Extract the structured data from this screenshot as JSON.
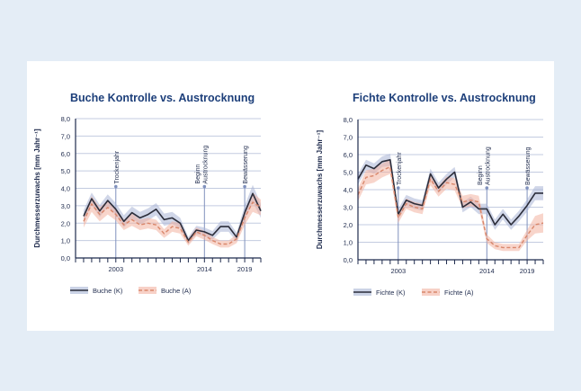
{
  "chart_data": [
    {
      "type": "line",
      "title": "Buche Kontrolle vs. Austrocknung",
      "ylabel": "Durchmesserzuwachs [mm Jahr⁻¹]",
      "xlabel": "",
      "ylim": [
        0,
        8
      ],
      "yticks": [
        "0,0",
        "1,0",
        "2,0",
        "3,0",
        "4,0",
        "5,0",
        "6,0",
        "7,0",
        "8,0"
      ],
      "xlim": [
        1998,
        2021
      ],
      "xtick_years": [
        1998,
        1999,
        2000,
        2001,
        2002,
        2003,
        2004,
        2005,
        2006,
        2007,
        2008,
        2009,
        2010,
        2011,
        2012,
        2013,
        2014,
        2015,
        2016,
        2017,
        2018,
        2019,
        2020,
        2021
      ],
      "xtick_labels": [
        {
          "x": 2003,
          "label": "2003"
        },
        {
          "x": 2014,
          "label": "2014"
        },
        {
          "x": 2019,
          "label": "2019"
        }
      ],
      "grid": "horizontal",
      "legend_placement": "bottom-left",
      "x": [
        1999,
        2000,
        2001,
        2002,
        2003,
        2004,
        2005,
        2006,
        2007,
        2008,
        2009,
        2010,
        2011,
        2012,
        2013,
        2014,
        2015,
        2016,
        2017,
        2018,
        2019,
        2020,
        2021
      ],
      "series": [
        {
          "name": "Buche (K)",
          "color": "#2b2d3a",
          "band_color": "#a9b5d6",
          "dash": "solid",
          "values": [
            2.4,
            3.4,
            2.7,
            3.3,
            2.8,
            2.1,
            2.6,
            2.3,
            2.5,
            2.8,
            2.2,
            2.3,
            2.0,
            1.0,
            1.6,
            1.5,
            1.3,
            1.8,
            1.8,
            1.2,
            2.6,
            3.7,
            2.7
          ],
          "band": [
            0.35,
            0.35,
            0.35,
            0.35,
            0.35,
            0.35,
            0.35,
            0.35,
            0.35,
            0.35,
            0.35,
            0.35,
            0.3,
            0.2,
            0.25,
            0.25,
            0.25,
            0.3,
            0.3,
            0.25,
            0.4,
            0.5,
            0.4
          ]
        },
        {
          "name": "Buche (A)",
          "color": "#d9876b",
          "band_color": "#f2b3a1",
          "dash": "dashed",
          "values": [
            2.1,
            3.1,
            2.5,
            2.9,
            2.5,
            1.9,
            2.2,
            1.9,
            2.0,
            1.9,
            1.4,
            1.8,
            1.7,
            0.9,
            1.5,
            1.3,
            1.0,
            0.8,
            0.8,
            1.1,
            2.3,
            3.2,
            2.9
          ],
          "band": [
            0.35,
            0.45,
            0.4,
            0.4,
            0.35,
            0.3,
            0.35,
            0.3,
            0.3,
            0.3,
            0.25,
            0.3,
            0.3,
            0.2,
            0.25,
            0.25,
            0.2,
            0.2,
            0.2,
            0.25,
            0.4,
            0.55,
            0.45
          ]
        }
      ],
      "annotations": [
        {
          "x": 2003,
          "y": 4.1,
          "label_lines": [
            "Trockenjahr"
          ]
        },
        {
          "x": 2014,
          "y": 4.1,
          "label_lines": [
            "Beginn",
            "Austrocknung"
          ]
        },
        {
          "x": 2019,
          "y": 4.1,
          "label_lines": [
            "Bewässerung"
          ]
        }
      ]
    },
    {
      "type": "line",
      "title": "Fichte Kontrolle vs. Austrocknung",
      "ylabel": "Durchmesserzuwachs [mm Jahr⁻¹]",
      "xlabel": "",
      "ylim": [
        0,
        8
      ],
      "yticks": [
        "0,0",
        "1,0",
        "2,0",
        "3,0",
        "4,0",
        "5,0",
        "6,0",
        "7,0",
        "8,0"
      ],
      "xlim": [
        1998,
        2021
      ],
      "xtick_years": [
        1998,
        1999,
        2000,
        2001,
        2002,
        2003,
        2004,
        2005,
        2006,
        2007,
        2008,
        2009,
        2010,
        2011,
        2012,
        2013,
        2014,
        2015,
        2016,
        2017,
        2018,
        2019,
        2020,
        2021
      ],
      "xtick_labels": [
        {
          "x": 2003,
          "label": "2003"
        },
        {
          "x": 2014,
          "label": "2014"
        },
        {
          "x": 2019,
          "label": "2019"
        }
      ],
      "grid": "horizontal",
      "legend_placement": "bottom-left",
      "x": [
        1998,
        1999,
        2000,
        2001,
        2002,
        2003,
        2004,
        2005,
        2006,
        2007,
        2008,
        2009,
        2010,
        2011,
        2012,
        2013,
        2014,
        2015,
        2016,
        2017,
        2018,
        2019,
        2020,
        2021
      ],
      "series": [
        {
          "name": "Fichte (K)",
          "color": "#2b2d3a",
          "band_color": "#a9b5d6",
          "dash": "solid",
          "values": [
            4.6,
            5.4,
            5.2,
            5.6,
            5.7,
            2.6,
            3.4,
            3.2,
            3.1,
            4.9,
            4.1,
            4.6,
            5.0,
            3.0,
            3.3,
            2.9,
            2.9,
            2.0,
            2.6,
            2.0,
            2.5,
            3.1,
            3.8,
            3.8
          ],
          "band": [
            0.3,
            0.3,
            0.3,
            0.3,
            0.35,
            0.3,
            0.3,
            0.3,
            0.3,
            0.3,
            0.3,
            0.3,
            0.3,
            0.3,
            0.3,
            0.3,
            0.3,
            0.3,
            0.3,
            0.3,
            0.3,
            0.35,
            0.4,
            0.4
          ]
        },
        {
          "name": "Fichte (A)",
          "color": "#d9876b",
          "band_color": "#f2b3a1",
          "dash": "dashed",
          "values": [
            3.7,
            4.7,
            4.8,
            5.1,
            5.3,
            2.4,
            3.2,
            3.0,
            2.9,
            4.6,
            3.9,
            4.4,
            4.3,
            3.3,
            3.4,
            3.3,
            1.2,
            0.8,
            0.7,
            0.7,
            0.7,
            1.4,
            2.0,
            2.1
          ],
          "band": [
            0.35,
            0.4,
            0.4,
            0.4,
            0.4,
            0.3,
            0.3,
            0.3,
            0.3,
            0.35,
            0.3,
            0.35,
            0.35,
            0.35,
            0.35,
            0.35,
            0.25,
            0.2,
            0.2,
            0.2,
            0.2,
            0.3,
            0.5,
            0.55
          ]
        }
      ],
      "annotations": [
        {
          "x": 2003,
          "y": 4.1,
          "label_lines": [
            "Trockenjahr"
          ]
        },
        {
          "x": 2014,
          "y": 4.1,
          "label_lines": [
            "Beginn",
            "Austrocknung"
          ]
        },
        {
          "x": 2019,
          "y": 4.1,
          "label_lines": [
            "Bewässerung"
          ]
        }
      ]
    }
  ],
  "colors": {
    "background": "#e4edf6",
    "frame": "#ffffff",
    "title": "#1d3f7a",
    "axis": "#1f2b4d",
    "grid": "#c3cbe0",
    "annotation": "#8091bd"
  }
}
